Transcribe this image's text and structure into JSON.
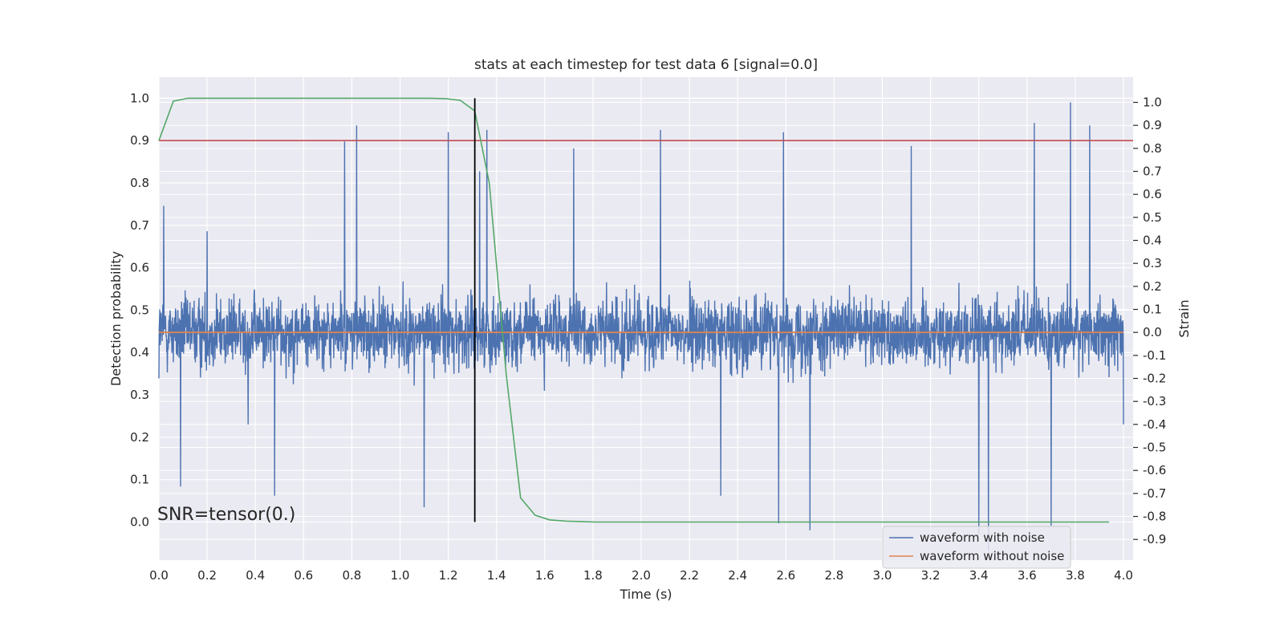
{
  "chart_data": {
    "type": "line",
    "title": "stats at each timestep for test data 6 [signal=0.0]",
    "xlabel": "Time (s)",
    "ylabel_left": "Detection probability",
    "ylabel_right": "Strain",
    "annotation": "SNR=tensor(0.)",
    "xlim": [
      0.0,
      4.04
    ],
    "ylim_left": [
      -0.09,
      1.05
    ],
    "ylim_right": [
      -0.99,
      1.11
    ],
    "x_ticks": [
      "0.0",
      "0.2",
      "0.4",
      "0.6",
      "0.8",
      "1.0",
      "1.2",
      "1.4",
      "1.6",
      "1.8",
      "2.0",
      "2.2",
      "2.4",
      "2.6",
      "2.8",
      "3.0",
      "3.2",
      "3.4",
      "3.6",
      "3.8",
      "4.0"
    ],
    "y_ticks_left": [
      "0.0",
      "0.1",
      "0.2",
      "0.3",
      "0.4",
      "0.5",
      "0.6",
      "0.7",
      "0.8",
      "0.9",
      "1.0"
    ],
    "y_ticks_right": [
      "-0.9",
      "-0.8",
      "-0.7",
      "-0.6",
      "-0.5",
      "-0.4",
      "-0.3",
      "-0.2",
      "-0.1",
      "0.0",
      "0.1",
      "0.2",
      "0.3",
      "0.4",
      "0.5",
      "0.6",
      "0.7",
      "0.8",
      "0.9",
      "1.0"
    ],
    "grid": true,
    "legend_position": "lower-right",
    "colors": {
      "background": "#eaeaf2",
      "grid": "#ffffff",
      "noise": "#4c72b0",
      "clean": "#dd8452",
      "probability": "#55a868",
      "threshold": "#c44e52",
      "marker": "#000000"
    },
    "threshold_left": 0.9,
    "marker_x": 1.31,
    "series": [
      {
        "name": "waveform with noise",
        "axis": "right",
        "description_values": "dense random noise, strain values spanning approximately -0.9 to 1.0",
        "sample_points": [
          [
            0.0,
            -0.2
          ],
          [
            0.02,
            0.55
          ],
          [
            0.09,
            -0.67
          ],
          [
            0.2,
            0.44
          ],
          [
            0.37,
            -0.4
          ],
          [
            0.48,
            -0.71
          ],
          [
            0.77,
            0.83
          ],
          [
            0.82,
            0.9
          ],
          [
            0.97,
            0.05
          ],
          [
            1.1,
            -0.76
          ],
          [
            1.2,
            0.87
          ],
          [
            1.33,
            0.7
          ],
          [
            1.36,
            0.88
          ],
          [
            1.54,
            0.05
          ],
          [
            1.72,
            0.8
          ],
          [
            2.08,
            0.88
          ],
          [
            2.33,
            -0.71
          ],
          [
            2.57,
            -0.83
          ],
          [
            2.59,
            0.87
          ],
          [
            2.7,
            -0.86
          ],
          [
            3.12,
            0.81
          ],
          [
            3.4,
            -0.88
          ],
          [
            3.44,
            -0.95
          ],
          [
            3.63,
            0.91
          ],
          [
            3.7,
            -0.84
          ],
          [
            3.78,
            1.0
          ],
          [
            3.86,
            0.9
          ],
          [
            4.0,
            -0.4
          ]
        ]
      },
      {
        "name": "waveform without noise",
        "axis": "right",
        "x": [
          0.0,
          4.0
        ],
        "y": [
          0.0,
          0.0
        ]
      },
      {
        "axis": "left",
        "x": [
          0.0,
          0.06,
          0.12,
          0.19,
          0.25,
          0.31,
          0.37,
          0.44,
          0.5,
          0.56,
          0.62,
          0.69,
          0.75,
          0.81,
          0.87,
          0.94,
          1.0,
          1.06,
          1.12,
          1.19,
          1.25,
          1.31,
          1.37,
          1.44,
          1.5,
          1.56,
          1.62,
          1.69,
          1.75,
          1.81,
          1.87,
          1.94,
          2.0,
          2.5,
          3.0,
          3.5,
          3.94
        ],
        "y": [
          0.9,
          0.993,
          1.0,
          1.0,
          1.0,
          1.0,
          1.0,
          1.0,
          1.0,
          1.0,
          1.0,
          1.0,
          1.0,
          1.0,
          1.0,
          1.0,
          1.0,
          1.0,
          1.0,
          0.999,
          0.995,
          0.97,
          0.8,
          0.35,
          0.057,
          0.016,
          0.005,
          0.002,
          0.001,
          0.0,
          0.0,
          0.0,
          0.0,
          0.0,
          0.0,
          0.0,
          0.0
        ]
      }
    ]
  }
}
